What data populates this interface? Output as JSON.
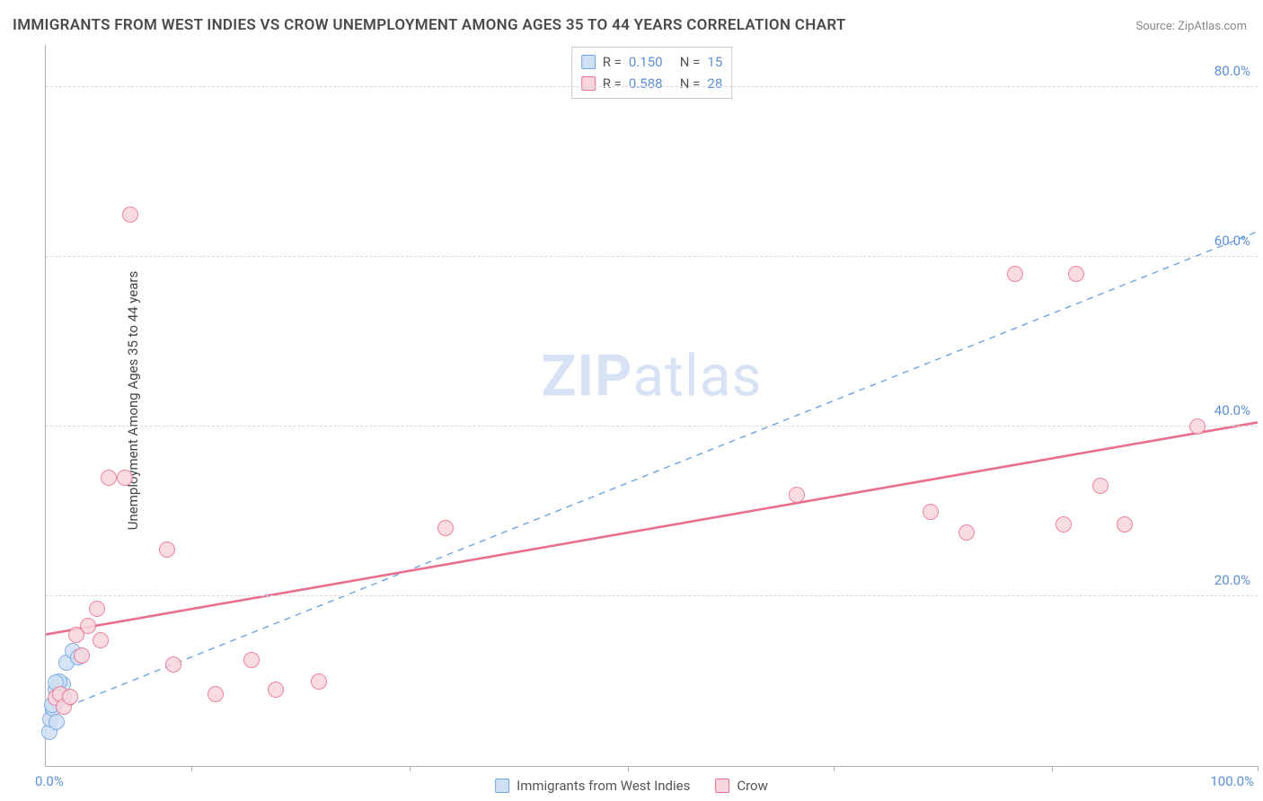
{
  "title": "IMMIGRANTS FROM WEST INDIES VS CROW UNEMPLOYMENT AMONG AGES 35 TO 44 YEARS CORRELATION CHART",
  "source": "Source: ZipAtlas.com",
  "watermark_bold": "ZIP",
  "watermark_rest": "atlas",
  "chart": {
    "type": "scatter",
    "ylabel": "Unemployment Among Ages 35 to 44 years",
    "xlim": [
      0,
      100
    ],
    "ylim": [
      0,
      85
    ],
    "x_origin_label": "0.0%",
    "x_max_label": "100.0%",
    "xtick_positions": [
      12,
      30,
      48,
      65,
      83,
      100
    ],
    "yticks": [
      {
        "v": 20,
        "label": "20.0%"
      },
      {
        "v": 40,
        "label": "40.0%"
      },
      {
        "v": 60,
        "label": "60.0%"
      },
      {
        "v": 80,
        "label": "80.0%"
      }
    ],
    "grid_color": "#d9d9d9",
    "axis_color": "#b0b0b0",
    "tick_label_color": "#5b8fd6",
    "background_color": "#ffffff",
    "marker_radius": 9,
    "marker_stroke_width": 1.6,
    "series": [
      {
        "name": "Immigrants from West Indies",
        "R": "0.150",
        "N": "15",
        "fill": "#cfe0f5",
        "stroke": "#6fa3e0",
        "points": [
          {
            "x": 0.3,
            "y": 4.0
          },
          {
            "x": 0.4,
            "y": 5.5
          },
          {
            "x": 0.6,
            "y": 6.8
          },
          {
            "x": 0.8,
            "y": 9.0
          },
          {
            "x": 1.0,
            "y": 7.6
          },
          {
            "x": 1.2,
            "y": 8.4
          },
          {
            "x": 1.4,
            "y": 9.6
          },
          {
            "x": 1.7,
            "y": 12.2
          },
          {
            "x": 2.2,
            "y": 13.5
          },
          {
            "x": 2.7,
            "y": 12.8
          },
          {
            "x": 0.5,
            "y": 7.2
          },
          {
            "x": 0.9,
            "y": 5.2
          },
          {
            "x": 1.1,
            "y": 10.0
          },
          {
            "x": 1.5,
            "y": 8.0
          },
          {
            "x": 0.8,
            "y": 9.8
          }
        ],
        "trend": {
          "style": "dashed",
          "width": 1.4,
          "color": "#6fa3e0",
          "x1": 0,
          "y1": 6.0,
          "x2": 100,
          "y2": 63.0
        }
      },
      {
        "name": "Crow",
        "R": "0.588",
        "N": "28",
        "fill": "#f9d6de",
        "stroke": "#e96f8e",
        "points": [
          {
            "x": 0.8,
            "y": 8.0
          },
          {
            "x": 1.2,
            "y": 8.5
          },
          {
            "x": 1.5,
            "y": 7.0
          },
          {
            "x": 2.0,
            "y": 8.2
          },
          {
            "x": 2.5,
            "y": 15.5
          },
          {
            "x": 3.0,
            "y": 13.0
          },
          {
            "x": 3.5,
            "y": 16.5
          },
          {
            "x": 4.5,
            "y": 14.8
          },
          {
            "x": 4.2,
            "y": 18.5
          },
          {
            "x": 5.2,
            "y": 34.0
          },
          {
            "x": 6.5,
            "y": 34.0
          },
          {
            "x": 7.0,
            "y": 65.0
          },
          {
            "x": 10.0,
            "y": 25.5
          },
          {
            "x": 10.5,
            "y": 12.0
          },
          {
            "x": 14.0,
            "y": 8.5
          },
          {
            "x": 17.0,
            "y": 12.5
          },
          {
            "x": 19.0,
            "y": 9.0
          },
          {
            "x": 22.5,
            "y": 10.0
          },
          {
            "x": 33.0,
            "y": 28.0
          },
          {
            "x": 62.0,
            "y": 32.0
          },
          {
            "x": 73.0,
            "y": 30.0
          },
          {
            "x": 76.0,
            "y": 27.5
          },
          {
            "x": 80.0,
            "y": 58.0
          },
          {
            "x": 84.0,
            "y": 28.5
          },
          {
            "x": 85.0,
            "y": 58.0
          },
          {
            "x": 87.0,
            "y": 33.0
          },
          {
            "x": 89.0,
            "y": 28.5
          },
          {
            "x": 95.0,
            "y": 40.0
          }
        ],
        "trend": {
          "style": "solid",
          "width": 2.6,
          "color": "#e96f8e",
          "x1": 0,
          "y1": 15.5,
          "x2": 100,
          "y2": 40.5
        }
      }
    ]
  }
}
